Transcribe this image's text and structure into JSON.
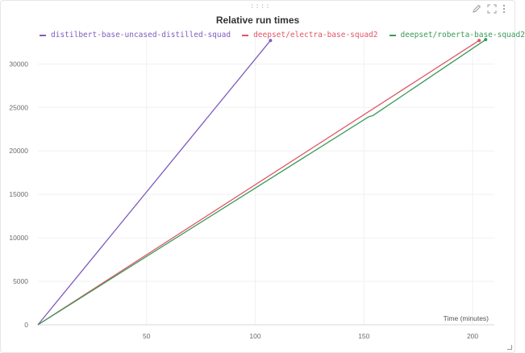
{
  "panel": {
    "title": "Relative run times",
    "toolbar": {
      "edit_icon": "pencil-icon",
      "fullscreen_icon": "expand-icon",
      "menu_icon": "kebab-menu-icon"
    }
  },
  "chart_data": {
    "type": "line",
    "title": "Relative run times",
    "xlabel": "Time (minutes)",
    "ylabel": "",
    "xlim": [
      0,
      210
    ],
    "ylim": [
      0,
      33000
    ],
    "xticks": [
      50,
      100,
      150,
      200
    ],
    "yticks": [
      0,
      5000,
      10000,
      15000,
      20000,
      25000,
      30000
    ],
    "grid": true,
    "legend_position": "top",
    "series": [
      {
        "name": "distilbert-base-uncased-distilled-squad",
        "color": "#7f5cbf",
        "x": [
          0,
          107
        ],
        "y": [
          0,
          32700
        ]
      },
      {
        "name": "deepset/electra-base-squad2",
        "color": "#e25468",
        "x": [
          0,
          203
        ],
        "y": [
          0,
          32700
        ]
      },
      {
        "name": "deepset/roberta-base-squad2",
        "color": "#3a9a57",
        "x": [
          0,
          152,
          153,
          154,
          206
        ],
        "y": [
          0,
          23900,
          24000,
          24050,
          32800
        ]
      }
    ]
  }
}
